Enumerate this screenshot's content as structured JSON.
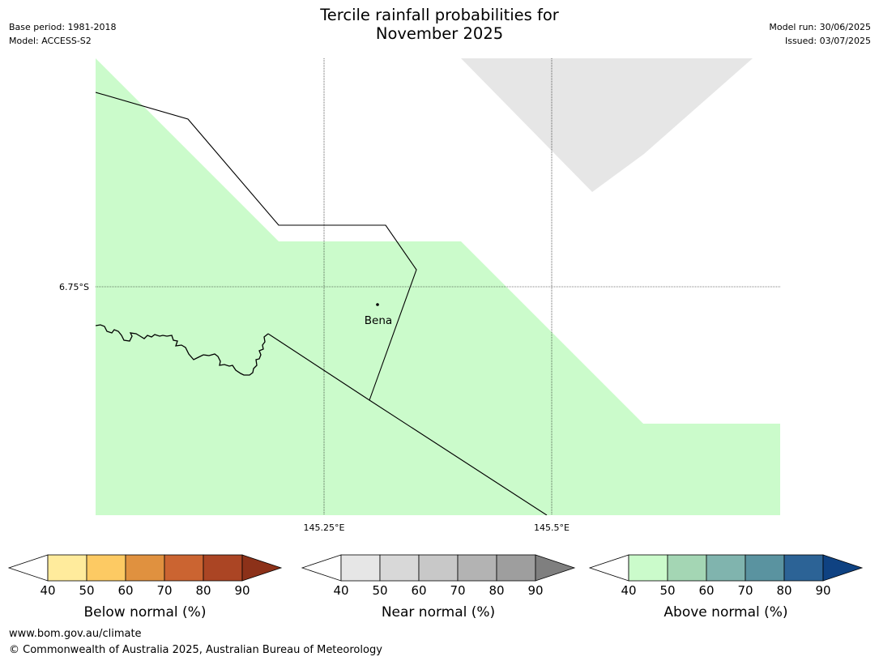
{
  "header": {
    "title_line1": "Tercile rainfall probabilities for",
    "title_line2": "November 2025",
    "base_period": "Base period: 1981-2018",
    "model": "Model: ACCESS-S2",
    "model_run": "Model run: 30/06/2025",
    "issued": "Issued: 03/07/2025"
  },
  "map": {
    "lat_label": "6.75°S",
    "lon_labels": [
      "145.25°E",
      "145.5°E"
    ],
    "place": "Bena",
    "colors": {
      "above_40_50": "#cbfbcb",
      "near_40_50": "#e6e6e6",
      "background": "#ffffff",
      "lines": "#000000"
    }
  },
  "legends": [
    {
      "title": "Below normal (%)",
      "ticks": [
        "40",
        "50",
        "60",
        "70",
        "80",
        "90"
      ],
      "colors": [
        "#ffeb9c",
        "#fdca63",
        "#e0913f",
        "#cb6431",
        "#ab4524",
        "#8c3119"
      ]
    },
    {
      "title": "Near normal (%)",
      "ticks": [
        "40",
        "50",
        "60",
        "70",
        "80",
        "90"
      ],
      "colors": [
        "#e6e6e6",
        "#d8d8d8",
        "#c8c8c8",
        "#b3b3b3",
        "#9e9e9e",
        "#7f7f7f"
      ]
    },
    {
      "title": "Above normal (%)",
      "ticks": [
        "40",
        "50",
        "60",
        "70",
        "80",
        "90"
      ],
      "colors": [
        "#cbfbcb",
        "#a4d6b4",
        "#80b4ae",
        "#5a93a0",
        "#2c6396",
        "#0f4282"
      ]
    }
  ],
  "footer": {
    "url": "www.bom.gov.au/climate",
    "copyright": "© Commonwealth of Australia 2025, Australian Bureau of Meteorology"
  }
}
